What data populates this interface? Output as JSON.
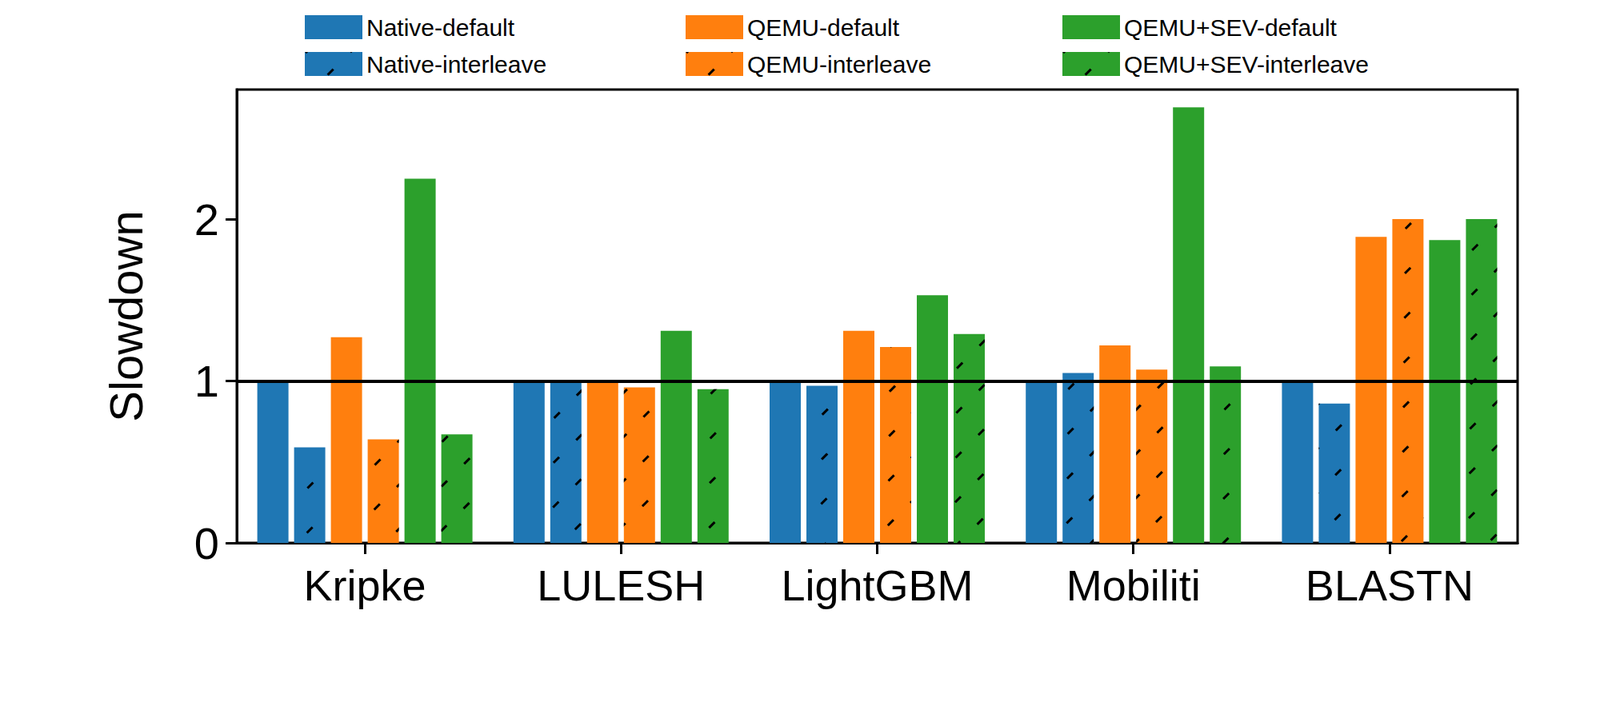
{
  "chart_data": {
    "type": "bar",
    "y_label": "Slowdown",
    "categories": [
      "Kripke",
      "LULESH",
      "LightGBM",
      "Mobiliti",
      "BLASTN"
    ],
    "series": [
      {
        "name": "Native-default",
        "color": "#1f77b4",
        "values": [
          1.0,
          1.0,
          1.0,
          1.0,
          1.0
        ]
      },
      {
        "name": "Native-interleave",
        "color": "#1f77b4",
        "marker": "hatch",
        "values": [
          0.59,
          1.0,
          0.97,
          1.05,
          0.86
        ]
      },
      {
        "name": "QEMU-default",
        "color": "#ff7f0e",
        "values": [
          1.27,
          1.0,
          1.31,
          1.22,
          1.89
        ]
      },
      {
        "name": "QEMU-interleave",
        "color": "#ff7f0e",
        "marker": "hatch",
        "values": [
          0.64,
          0.96,
          1.21,
          1.07,
          2.0
        ]
      },
      {
        "name": "QEMU+SEV-default",
        "color": "#2ca02c",
        "values": [
          2.25,
          1.31,
          1.53,
          2.69,
          1.87
        ]
      },
      {
        "name": "QEMU+SEV-interleave",
        "color": "#2ca02c",
        "marker": "hatch",
        "values": [
          0.67,
          0.95,
          1.29,
          1.09,
          2.0
        ]
      }
    ],
    "reference_line": 1,
    "ylim": [
      0,
      2.8
    ],
    "yticks": [
      0,
      1,
      2
    ],
    "grid": false,
    "legend": "top"
  }
}
